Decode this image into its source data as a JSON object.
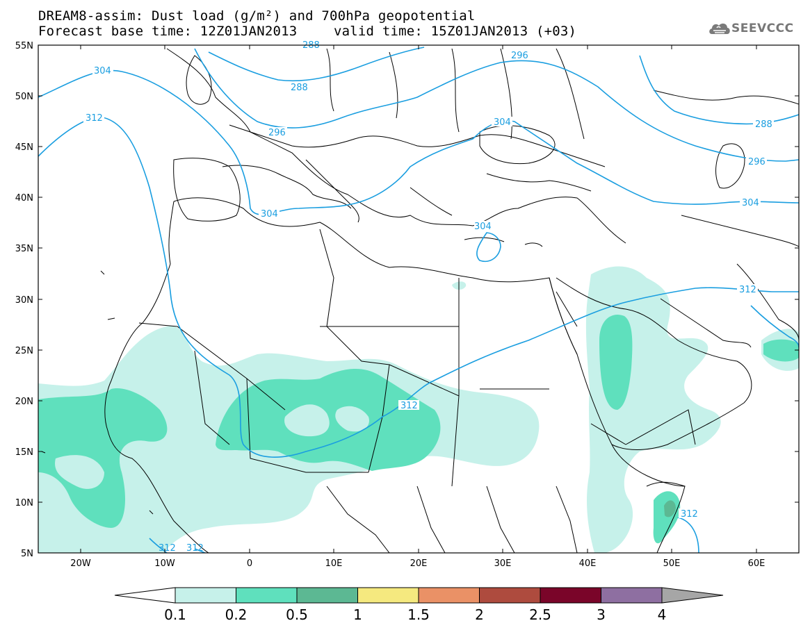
{
  "header": {
    "title": "DREAM8-assim: Dust load (g/m²) and 700hPa geopotential",
    "base_time": "Forecast base time: 12Z01JAN2013",
    "valid_time": "valid time: 15Z01JAN2013 (+03)"
  },
  "logo": {
    "text": "SEEVCCC",
    "icon": "cloud-logo-icon",
    "color": "#777777"
  },
  "map": {
    "lon_range": [
      -25,
      65
    ],
    "lat_range": [
      5,
      55
    ],
    "lat_ticks": [
      "5N",
      "10N",
      "15N",
      "20N",
      "25N",
      "30N",
      "35N",
      "40N",
      "45N",
      "50N",
      "55N"
    ],
    "lon_ticks": [
      "20W",
      "10W",
      "0",
      "10E",
      "20E",
      "30E",
      "40E",
      "50E",
      "60E"
    ],
    "contour_color": "#1a9ee0",
    "contour_labels": [
      "312",
      "304",
      "304",
      "296",
      "288",
      "296",
      "304",
      "288",
      "296",
      "304",
      "312",
      "312",
      "312",
      "312",
      "312",
      "304",
      "288"
    ],
    "dust_fill_colors": {
      "0.1-0.2": "#c6f1ea",
      "0.2-0.5": "#5fe0bd",
      "0.5-1": "#5cb893"
    }
  },
  "colorbar": {
    "levels": [
      "0.1",
      "0.2",
      "0.5",
      "1",
      "1.5",
      "2",
      "2.5",
      "3",
      "4"
    ],
    "colors": [
      "#ffffff",
      "#c6f1ea",
      "#5fe0bd",
      "#5cb893",
      "#f5e97f",
      "#ea9166",
      "#ae4b3e",
      "#7a0529",
      "#8e6fa1",
      "#a6a6a6"
    ]
  }
}
